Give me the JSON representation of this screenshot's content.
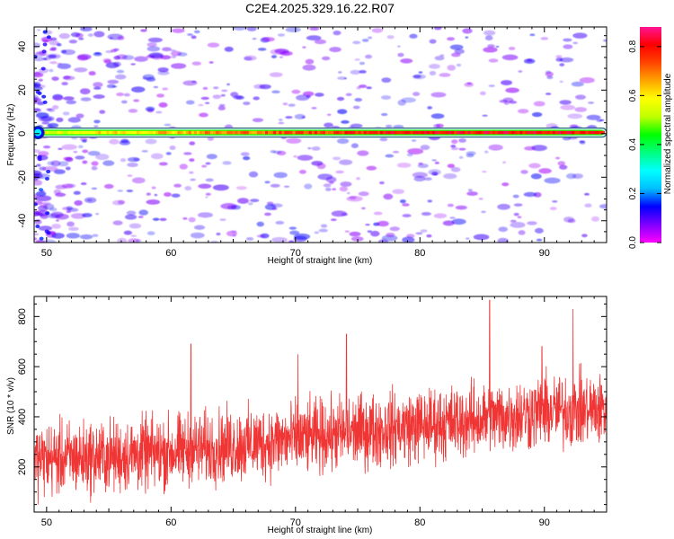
{
  "title": "C2E4.2025.329.16.22.R07",
  "chart_data": [
    {
      "type": "heatmap",
      "xlabel": "Height of straight line (km)",
      "ylabel": "Frequency (Hz)",
      "xlim": [
        49,
        95
      ],
      "ylim": [
        -50,
        49
      ],
      "x_ticks": [
        50,
        60,
        70,
        80,
        90
      ],
      "y_ticks": [
        -40,
        -20,
        0,
        20,
        40
      ],
      "colorbar": {
        "label": "Normalized spectral amplitude",
        "range": [
          0,
          0.88
        ],
        "ticks": [
          0.0,
          0.2,
          0.4,
          0.6,
          0.8
        ],
        "colormap": [
          "#ff00ff",
          "#7f00ff",
          "#0000ff",
          "#00bfff",
          "#00ffff",
          "#00ff7f",
          "#00ff00",
          "#bfff00",
          "#ffff00",
          "#ffa500",
          "#ff4500",
          "#ff0000",
          "#ff1493"
        ]
      },
      "signal_band": {
        "frequency_hz": 0.5,
        "x_range": [
          49,
          95
        ],
        "amplitude": [
          0.55,
          0.8
        ],
        "low_freq_blob_x": 49.3
      },
      "background_noise": {
        "amplitude": [
          0.05,
          0.15
        ],
        "density_decreases_with_x": true
      }
    },
    {
      "type": "line",
      "xlabel": "Height of straight line (km)",
      "ylabel": "SNR (10 * v/v)",
      "xlim": [
        49,
        95
      ],
      "ylim": [
        20,
        880
      ],
      "x_ticks": [
        50,
        60,
        70,
        80,
        90
      ],
      "y_ticks": [
        200,
        400,
        600,
        800
      ],
      "series": [
        {
          "color": "#f03535",
          "trend_x": [
            49,
            55,
            60,
            65,
            70,
            75,
            80,
            85,
            90,
            95
          ],
          "trend_y": [
            230,
            240,
            260,
            285,
            310,
            340,
            365,
            390,
            420,
            430
          ],
          "noise_amplitude": 130,
          "peaks": [
            {
              "x": 61.6,
              "y": 690
            },
            {
              "x": 70.2,
              "y": 650
            },
            {
              "x": 74.1,
              "y": 730
            },
            {
              "x": 85.6,
              "y": 865
            },
            {
              "x": 92.3,
              "y": 830
            },
            {
              "x": 89.8,
              "y": 680
            }
          ]
        }
      ]
    }
  ]
}
